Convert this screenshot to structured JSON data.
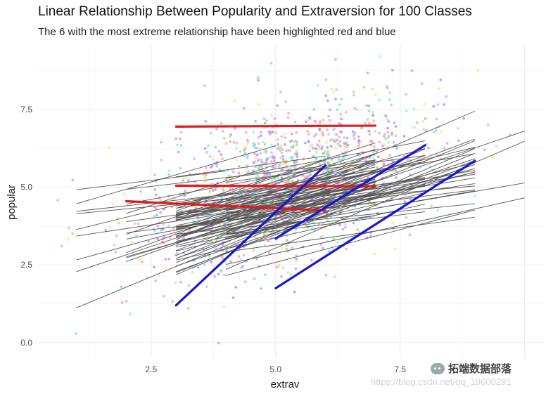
{
  "chart_data": {
    "type": "scatter",
    "title": "Linear Relationship Between Popularity and Extraversion for 100 Classes",
    "subtitle": "The 6 with the most extreme relationship have been highlighted red and blue",
    "xlabel": "extrav",
    "ylabel": "popular",
    "xlim": [
      0.2,
      10.4
    ],
    "ylim": [
      -0.5,
      9.6
    ],
    "x_ticks": [
      2.5,
      5.0,
      7.5
    ],
    "y_ticks": [
      0.0,
      2.5,
      5.0,
      7.5
    ],
    "grid": true,
    "legend": "none",
    "point_palette": [
      "#9b8cff",
      "#ff8fd0",
      "#8fe08a",
      "#ffe36e",
      "#7fd6ff",
      "#c78cff",
      "#ff9e9e",
      "#8ff0d0"
    ],
    "class_line_color": "#555555",
    "highlight_colors": {
      "red": "#e31b1b",
      "blue": "#1616d6"
    },
    "highlighted_lines": [
      {
        "color": "red",
        "x0": 3.0,
        "y0": 6.95,
        "x1": 7.0,
        "y1": 6.98
      },
      {
        "color": "red",
        "x0": 3.0,
        "y0": 5.05,
        "x1": 7.0,
        "y1": 5.03
      },
      {
        "color": "red",
        "x0": 2.0,
        "y0": 4.55,
        "x1": 6.0,
        "y1": 4.25
      },
      {
        "color": "blue",
        "x0": 3.0,
        "y0": 1.2,
        "x1": 6.0,
        "y1": 5.7
      },
      {
        "color": "blue",
        "x0": 5.0,
        "y0": 3.35,
        "x1": 8.0,
        "y1": 6.35
      },
      {
        "color": "blue",
        "x0": 5.0,
        "y0": 1.75,
        "x1": 9.0,
        "y1": 5.85
      }
    ]
  },
  "watermark": {
    "url": "https://blog.csdn.net/qq_19600291",
    "brand": "拓端数据部落"
  }
}
